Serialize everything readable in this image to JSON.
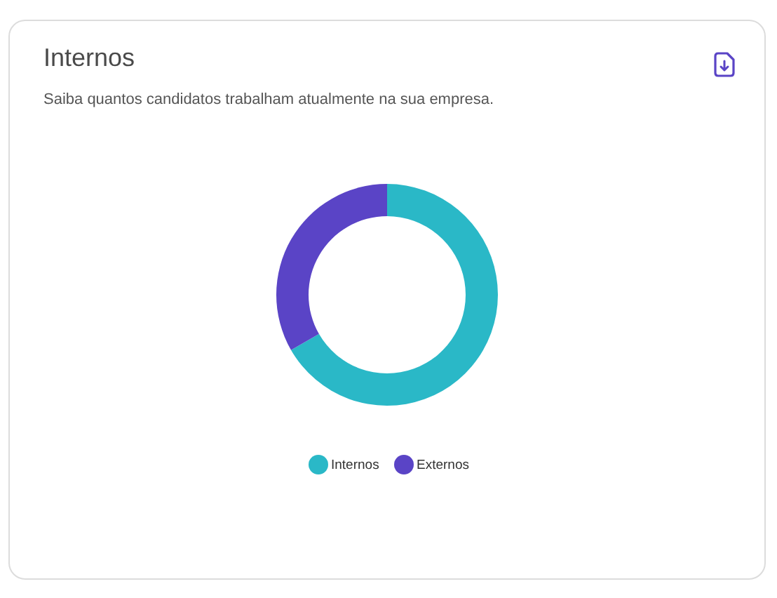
{
  "chart_data": {
    "type": "donut",
    "title": "Internos",
    "subtitle": "Saiba quantos candidatos trabalham atualmente na sua empresa.",
    "categories": [
      "Internos",
      "Externos"
    ],
    "values": [
      66.7,
      33.3
    ],
    "colors": [
      "#2ab8c7",
      "#5a44c6"
    ],
    "legend": "bottom"
  }
}
